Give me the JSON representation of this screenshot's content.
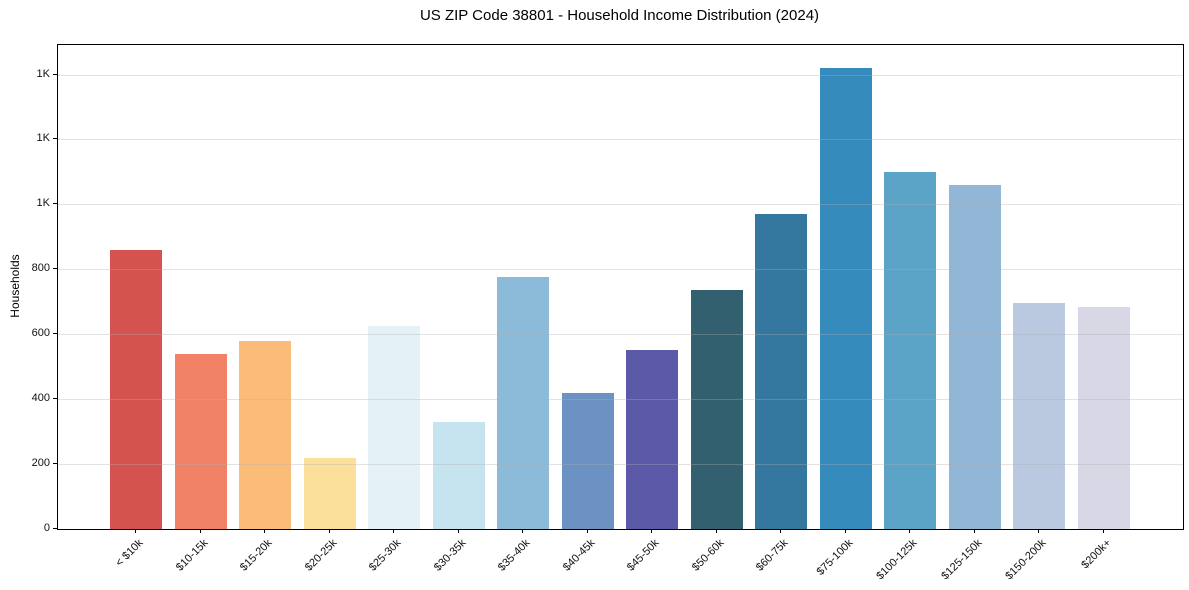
{
  "chart_data": {
    "type": "bar",
    "title": "US ZIP Code 38801 - Household Income Distribution (2024)",
    "xlabel": "",
    "ylabel": "Households",
    "categories": [
      "< $10k",
      "$10-15k",
      "$15-20k",
      "$20-25k",
      "$25-30k",
      "$30-35k",
      "$35-40k",
      "$40-45k",
      "$45-50k",
      "$50-60k",
      "$60-75k",
      "$75-100k",
      "$100-125k",
      "$125-150k",
      "$150-200k",
      "$200k+"
    ],
    "values": [
      860,
      538,
      580,
      220,
      625,
      330,
      775,
      420,
      550,
      735,
      970,
      1420,
      1100,
      1060,
      695,
      685
    ],
    "bar_colors": [
      "#d4534e",
      "#f28266",
      "#fcbc79",
      "#fbe09c",
      "#e4f1f7",
      "#c5e4f0",
      "#8cbad9",
      "#6b92c3",
      "#5c59a9",
      "#32606f",
      "#34789f",
      "#368bbd",
      "#5ba4c8",
      "#92b6d5",
      "#bac8e0",
      "#d7d7e6"
    ],
    "ytick_values": [
      0,
      200,
      400,
      600,
      800,
      1000,
      1200,
      1400
    ],
    "ytick_labels": [
      "0",
      "200",
      "400",
      "600",
      "800",
      "1K",
      "1K",
      "1K"
    ],
    "ylim": [
      0,
      1491
    ],
    "grid": true,
    "legend": false,
    "plot_background": "#ffffff",
    "axis_color": "#000000",
    "grid_color": "#e7e7e7"
  }
}
